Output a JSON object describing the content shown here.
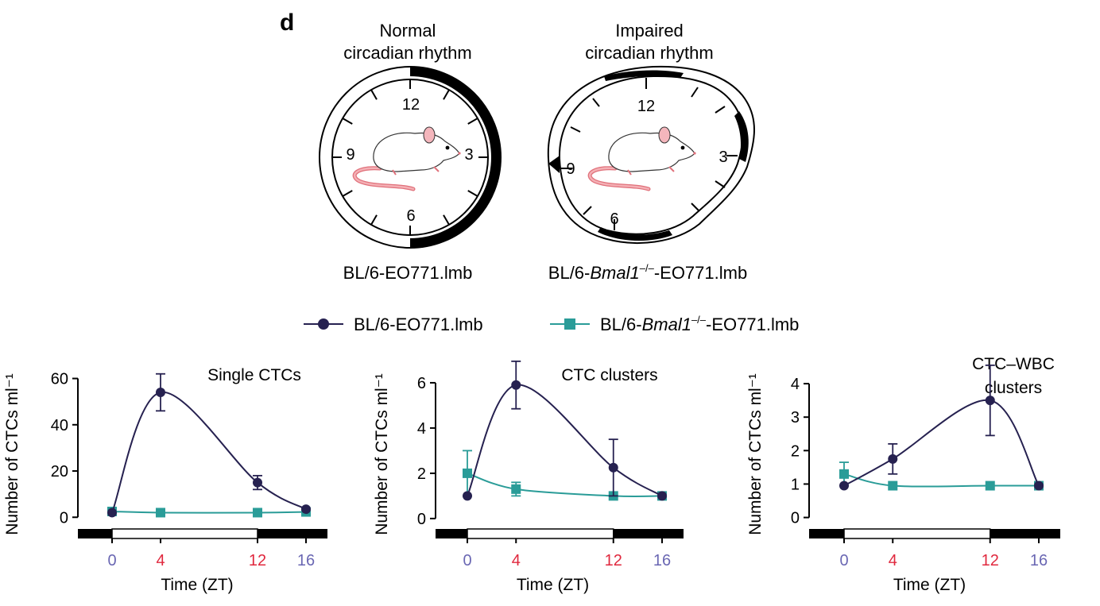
{
  "panel_label": "d",
  "clocks": [
    {
      "title_line1": "Normal",
      "title_line2": "circadian rhythm",
      "caption": "BL/6-EO771.lmb",
      "numbers": [
        "12",
        "3",
        "6",
        "9"
      ]
    },
    {
      "title_line1": "Impaired",
      "title_line2": "circadian rhythm",
      "caption_prefix": "BL/6-",
      "caption_italic": "Bmal1",
      "caption_sup": "–/–",
      "caption_suffix": "-EO771.lmb",
      "numbers": [
        "12",
        "3",
        "6",
        "9"
      ]
    }
  ],
  "legend": {
    "series1": {
      "label": "BL/6-EO771.lmb"
    },
    "series2": {
      "prefix": "BL/6-",
      "italic": "Bmal1",
      "sup": "–/–",
      "suffix": "-EO771.lmb"
    }
  },
  "colors": {
    "series1": "#262150",
    "series2": "#2a9c98",
    "light": "#6a67b3",
    "dark": "#e0283e",
    "text": "#000000"
  },
  "chart_data": [
    {
      "type": "line",
      "title": "Single CTCs",
      "xlabel": "Time (ZT)",
      "ylabel": "Number of CTCs ml⁻¹",
      "x": [
        0,
        4,
        12,
        16
      ],
      "x_tick_labels": [
        "0",
        "4",
        "12",
        "16"
      ],
      "x_tick_colors": [
        "#6a67b3",
        "#e0283e",
        "#e0283e",
        "#6a67b3"
      ],
      "ylim": [
        -3,
        65
      ],
      "y_ticks": [
        0,
        20,
        40,
        60
      ],
      "series": [
        {
          "name": "BL/6-EO771.lmb",
          "values": [
            2,
            54,
            15,
            3.5
          ],
          "err": [
            0,
            8,
            3,
            0
          ]
        },
        {
          "name": "BL/6-Bmal1–/–-EO771.lmb",
          "values": [
            2.5,
            2,
            2,
            2.3
          ],
          "err": [
            0,
            0,
            0,
            0
          ]
        }
      ]
    },
    {
      "type": "line",
      "title": "CTC clusters",
      "xlabel": "Time (ZT)",
      "ylabel": "Number of CTCs ml⁻¹",
      "x": [
        0,
        4,
        12,
        16
      ],
      "x_tick_labels": [
        "0",
        "4",
        "12",
        "16"
      ],
      "x_tick_colors": [
        "#6a67b3",
        "#e0283e",
        "#e0283e",
        "#6a67b3"
      ],
      "ylim": [
        -0.25,
        6.7
      ],
      "y_ticks": [
        0,
        2,
        4,
        6
      ],
      "series": [
        {
          "name": "BL/6-EO771.lmb",
          "values": [
            1,
            5.9,
            2.25,
            1
          ],
          "err": [
            0,
            1.05,
            1.25,
            0
          ]
        },
        {
          "name": "BL/6-Bmal1–/–-EO771.lmb",
          "values": [
            2,
            1.3,
            1,
            1
          ],
          "err": [
            1,
            0.3,
            0,
            0
          ]
        }
      ]
    },
    {
      "type": "line",
      "title_line1": "CTC–WBC",
      "title_line2": "clusters",
      "xlabel": "Time (ZT)",
      "ylabel": "Number of CTCs ml⁻¹",
      "x": [
        0,
        4,
        12,
        16
      ],
      "x_tick_labels": [
        "0",
        "4",
        "12",
        "16"
      ],
      "x_tick_colors": [
        "#6a67b3",
        "#e0283e",
        "#e0283e",
        "#6a67b3"
      ],
      "ylim": [
        -0.2,
        4.5
      ],
      "y_ticks": [
        0,
        1,
        2,
        3,
        4
      ],
      "series": [
        {
          "name": "BL/6-EO771.lmb",
          "values": [
            0.95,
            1.75,
            3.5,
            0.95
          ],
          "err": [
            0,
            0.45,
            1.05,
            0
          ]
        },
        {
          "name": "BL/6-Bmal1–/–-EO771.lmb",
          "values": [
            1.3,
            0.95,
            0.95,
            0.95
          ],
          "err": [
            0.35,
            0,
            0,
            0
          ]
        }
      ]
    }
  ]
}
